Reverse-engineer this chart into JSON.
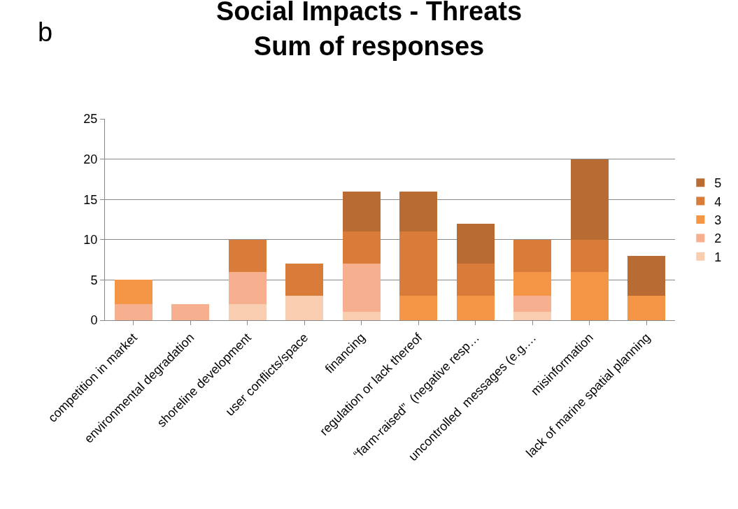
{
  "chart_data": {
    "type": "bar",
    "stacked": true,
    "title": "Social Impacts - Threats\nSum of responses",
    "annotations": [
      "b"
    ],
    "categories": [
      "competition in market",
      "environmental degradation",
      "shoreline development",
      "user conflicts/space",
      "financing",
      "regulation or lack thereof",
      "“farm-raised”  (negative resp…",
      "uncontrolled  messages (e.g.…",
      "misinformation",
      "lack of marine spatial planning"
    ],
    "series": [
      {
        "name": "1",
        "color": "#f9cdb0",
        "values": [
          null,
          null,
          2,
          3,
          1,
          null,
          null,
          1,
          null,
          null
        ]
      },
      {
        "name": "2",
        "color": "#f6b08f",
        "values": [
          2,
          2,
          4,
          null,
          6,
          null,
          null,
          2,
          null,
          null
        ]
      },
      {
        "name": "3",
        "color": "#f59646",
        "values": [
          3,
          null,
          null,
          null,
          null,
          3,
          3,
          3,
          6,
          3
        ]
      },
      {
        "name": "4",
        "color": "#d97c3a",
        "values": [
          null,
          null,
          4,
          4,
          4,
          8,
          4,
          4,
          4,
          null
        ]
      },
      {
        "name": "5",
        "color": "#b86b32",
        "values": [
          null,
          null,
          null,
          null,
          5,
          5,
          5,
          null,
          10,
          5
        ]
      }
    ],
    "ylim": [
      0,
      25
    ],
    "yticks": [
      0,
      5,
      10,
      15,
      20,
      25
    ],
    "grid": "y",
    "legend": "right"
  }
}
